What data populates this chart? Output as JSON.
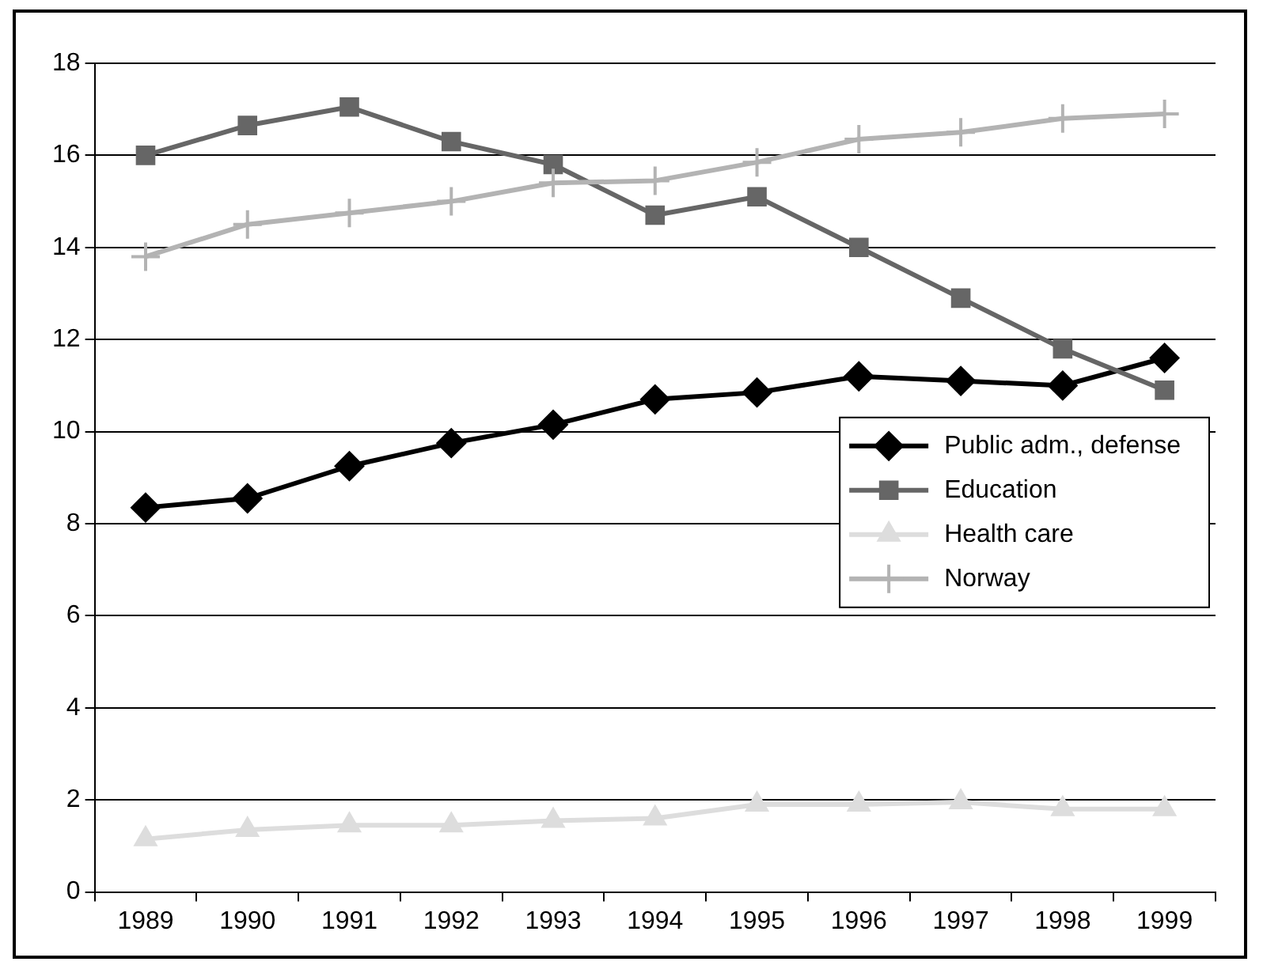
{
  "chart_data": {
    "type": "line",
    "categories": [
      "1989",
      "1990",
      "1991",
      "1992",
      "1993",
      "1994",
      "1995",
      "1996",
      "1997",
      "1998",
      "1999"
    ],
    "ylim": [
      0,
      18
    ],
    "yticks": [
      0,
      2,
      4,
      6,
      8,
      10,
      12,
      14,
      16,
      18
    ],
    "grid": "y",
    "legend": "right",
    "series": [
      {
        "name": "Public adm., defense",
        "color": "#000000",
        "marker": "diamond",
        "values": [
          8.35,
          8.55,
          9.25,
          9.75,
          10.15,
          10.7,
          10.85,
          11.2,
          11.1,
          11.0,
          11.6
        ]
      },
      {
        "name": "Education",
        "color": "#666666",
        "marker": "square",
        "values": [
          16.0,
          16.65,
          17.05,
          16.3,
          15.8,
          14.7,
          15.1,
          14.0,
          12.9,
          11.8,
          10.9
        ]
      },
      {
        "name": "Health care",
        "color": "#dddddd",
        "marker": "triangle",
        "values": [
          1.15,
          1.35,
          1.45,
          1.45,
          1.55,
          1.6,
          1.9,
          1.9,
          1.95,
          1.8,
          1.8
        ]
      },
      {
        "name": "Norway",
        "color": "#b3b3b3",
        "marker": "cross",
        "values": [
          13.8,
          14.5,
          14.75,
          15.0,
          15.4,
          15.45,
          15.85,
          16.35,
          16.5,
          16.8,
          16.9
        ]
      }
    ]
  }
}
